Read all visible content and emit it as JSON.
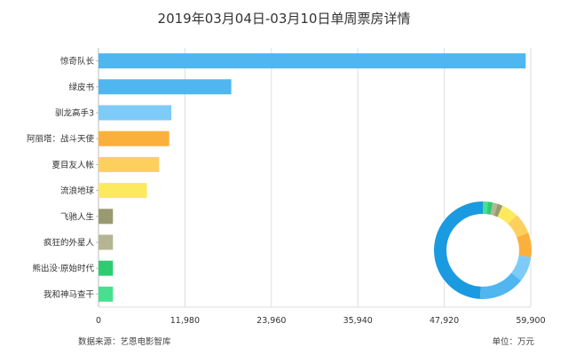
{
  "chart_data": {
    "type": "bar",
    "orientation": "horizontal",
    "title": "2019年03月04日-03月10日单周票房详情",
    "categories": [
      "惊奇队长",
      "绿皮书",
      "驯龙高手3",
      "阿丽塔：战斗天使",
      "夏目友人帐",
      "流浪地球",
      "飞驰人生",
      "疯狂的外星人",
      "熊出没·原始时代",
      "我和神马查干"
    ],
    "values": [
      59200,
      18400,
      10100,
      9800,
      8400,
      6700,
      2000,
      2000,
      2000,
      2000
    ],
    "colors": [
      "#4fb6f0",
      "#4fb6f0",
      "#7fcbf7",
      "#fbb03b",
      "#fdd05e",
      "#fde95e",
      "#9a9a70",
      "#b5b594",
      "#2ecc71",
      "#48e08f"
    ],
    "xlim": [
      0,
      59900
    ],
    "xticks": [
      "0",
      "11,980",
      "23,960",
      "35,940",
      "47,920",
      "59,900"
    ],
    "grid": true,
    "inset": {
      "type": "donut",
      "colors": [
        "#1a9ae0",
        "#4fb6f0",
        "#7fcbf7",
        "#fbb03b",
        "#fdd05e",
        "#fde95e",
        "#9a9a70",
        "#b5b594",
        "#2ecc71",
        "#48e08f"
      ]
    }
  },
  "footer": {
    "source": "数据来源：艺恩电影智库",
    "unit": "单位：万元"
  }
}
